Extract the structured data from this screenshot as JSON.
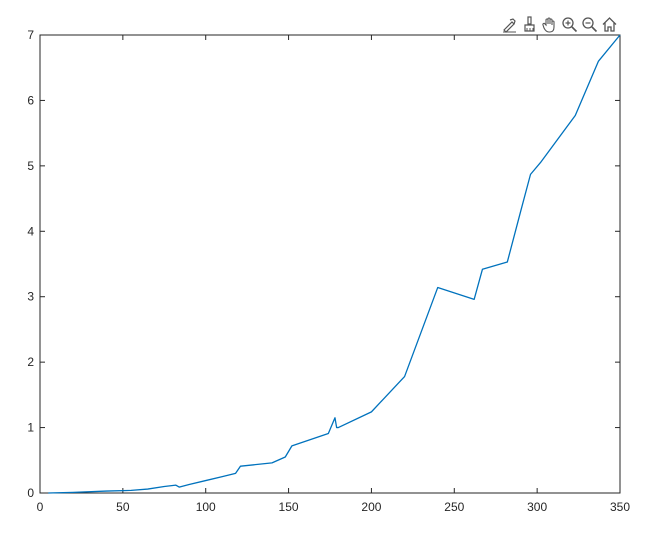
{
  "toolbar": {
    "icons": [
      "data-tips-icon",
      "brush-icon",
      "pan-hand-icon",
      "zoom-in-icon",
      "zoom-out-icon",
      "home-icon"
    ]
  },
  "colors": {
    "line": "#0072BD",
    "axes": "#262626",
    "background": "#ffffff"
  },
  "chart_data": {
    "type": "line",
    "title": "",
    "xlabel": "",
    "ylabel": "",
    "xlim": [
      0,
      350
    ],
    "ylim": [
      0,
      7
    ],
    "grid": false,
    "x_ticks": [
      0,
      50,
      100,
      150,
      200,
      250,
      300,
      350
    ],
    "y_ticks": [
      0,
      1,
      2,
      3,
      4,
      5,
      6,
      7
    ],
    "series": [
      {
        "x": [
          5,
          20,
          40,
          55,
          65,
          75,
          82,
          84,
          90,
          100,
          110,
          118,
          121,
          140,
          148,
          152,
          174,
          178,
          179,
          180,
          200,
          220,
          240,
          262,
          267,
          282,
          290,
          296,
          302,
          323,
          337,
          350
        ],
        "y": [
          0,
          0.01,
          0.03,
          0.04,
          0.06,
          0.1,
          0.12,
          0.09,
          0.13,
          0.19,
          0.25,
          0.3,
          0.41,
          0.46,
          0.55,
          0.72,
          0.91,
          1.15,
          1.0,
          1.0,
          1.24,
          1.78,
          3.14,
          2.96,
          3.42,
          3.53,
          4.3,
          4.87,
          5.05,
          5.77,
          6.6,
          7.0
        ]
      }
    ]
  }
}
